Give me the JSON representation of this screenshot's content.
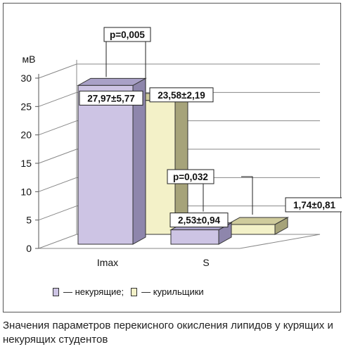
{
  "chart_data": {
    "type": "bar",
    "unit_label": "мВ",
    "categories": [
      "Imax",
      "S"
    ],
    "series": [
      {
        "name": "— некурящие;",
        "values": [
          27.97,
          2.53
        ],
        "labels": [
          "27,97±5,77",
          "2,53±0,94"
        ],
        "color": "#cdc4e4",
        "side_color": "#8e86ac",
        "top_color": "#a9a1c7"
      },
      {
        "name": "— курильщики",
        "values": [
          23.58,
          1.74
        ],
        "labels": [
          "23,58±2,19",
          "1,74±0,81"
        ],
        "color": "#f3f1c8",
        "side_color": "#a6a37a",
        "top_color": "#cfcb9c"
      }
    ],
    "p_values": [
      "p=0,005",
      "p=0,032"
    ],
    "yticks": [
      0,
      5,
      10,
      15,
      20,
      25,
      30
    ],
    "ylim": [
      0,
      30
    ],
    "grid": true,
    "legend_position": "bottom"
  },
  "caption": "Значения параметров перекисного окисления липидов у курящих и некурящих студентов"
}
